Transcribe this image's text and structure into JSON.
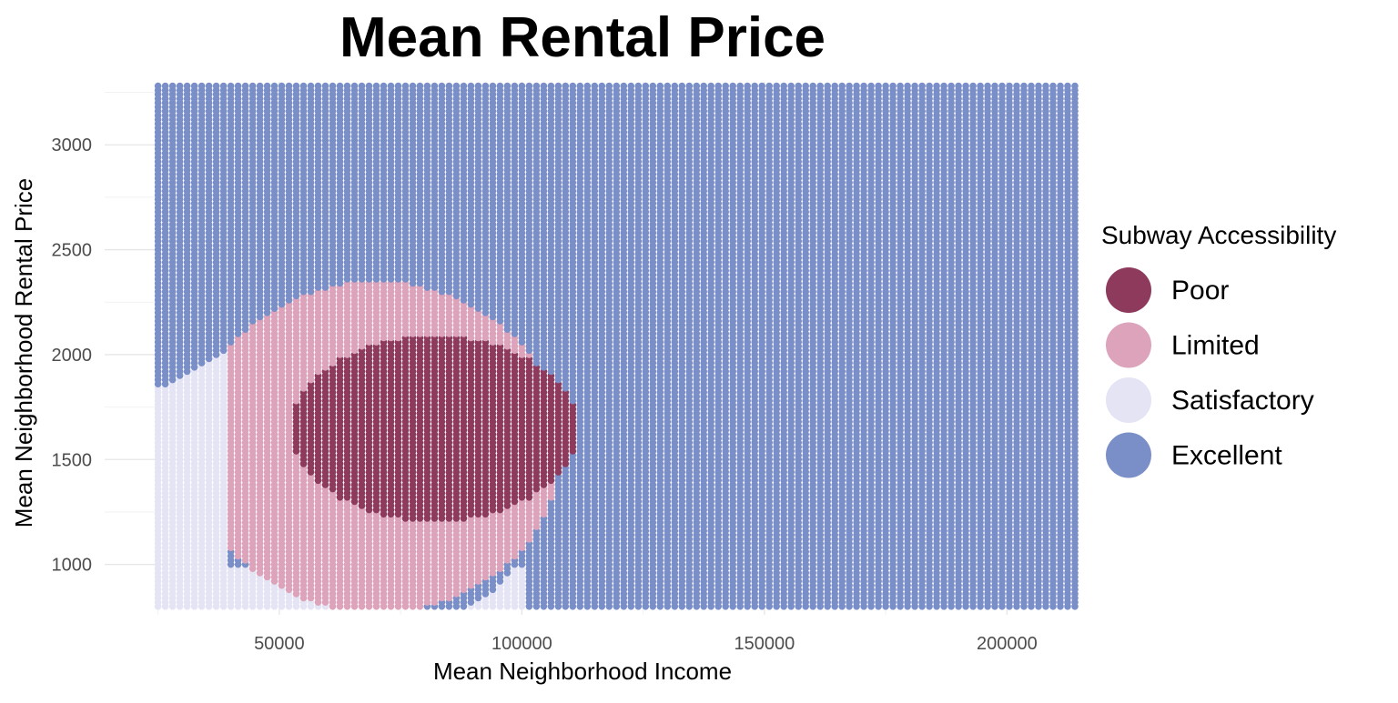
{
  "chart_data": {
    "type": "scatter",
    "title": "Mean Rental Price",
    "xlabel": "Mean Neighborhood Income",
    "ylabel": "Mean Neighborhood Rental Price",
    "xlim": [
      14000,
      211000
    ],
    "ylim": [
      760,
      3300
    ],
    "x_ticks": [
      50000,
      100000,
      150000,
      200000
    ],
    "y_ticks": [
      1000,
      1500,
      2000,
      2500,
      3000
    ],
    "grid": true,
    "grid_size": {
      "x_start": 25000,
      "x_end": 214000,
      "x_step": 1500,
      "y_start": 800,
      "y_end": 3280,
      "y_step": 20
    },
    "region_boundaries": {
      "poor": {
        "x_range": [
          53000,
          112000
        ],
        "y_range": [
          1210,
          2090
        ],
        "center": [
          84000,
          1650
        ]
      },
      "limited": {
        "x_range": [
          40000,
          106000
        ],
        "y_range": [
          800,
          2360
        ],
        "center": [
          68000,
          1580
        ]
      },
      "satisfactory": {
        "x_range": [
          25000,
          103000
        ],
        "y_range": [
          800,
          2040
        ]
      }
    },
    "legend": {
      "title": "Subway Accessibility",
      "position": "right",
      "items": [
        {
          "label": "Poor",
          "color": "#8e3a5d"
        },
        {
          "label": "Limited",
          "color": "#dca3bb"
        },
        {
          "label": "Satisfactory",
          "color": "#e4e4f4"
        },
        {
          "label": "Excellent",
          "color": "#7a8ec8"
        }
      ]
    }
  }
}
